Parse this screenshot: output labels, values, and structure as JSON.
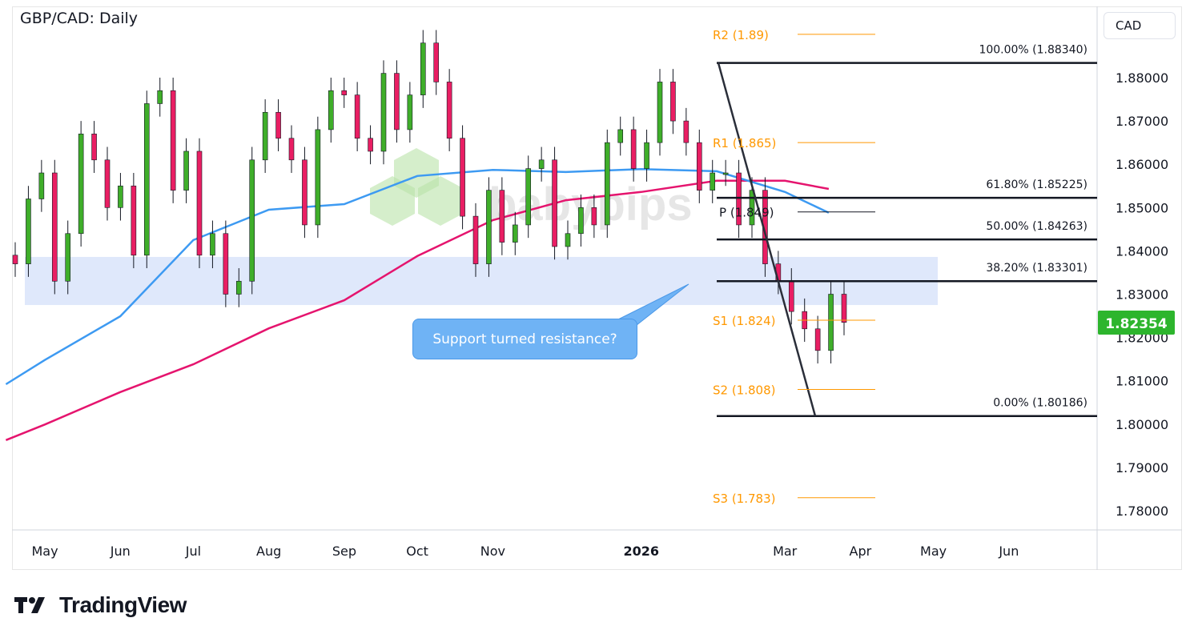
{
  "header": {
    "title": "GBP/CAD: Daily",
    "currency": "CAD",
    "brand": "TradingView",
    "watermark": "babypips"
  },
  "colors": {
    "up": "#3fae2a",
    "down": "#e91e63",
    "ma_fast": "#3d9af2",
    "ma_slow": "#e5146e",
    "pivot": "#ff9800",
    "fib": "#131722",
    "zone": "#dce6fb",
    "last_price": "#2db52d"
  },
  "annotation": {
    "text": "Support turned resistance?"
  },
  "chart_data": {
    "type": "candlestick",
    "title": "GBP/CAD: Daily",
    "ylim": [
      1.775,
      1.894
    ],
    "y_ticks": [
      "1.88000",
      "1.87000",
      "1.86000",
      "1.85000",
      "1.84000",
      "1.83000",
      "1.82000",
      "1.81000",
      "1.80000",
      "1.79000",
      "1.78000"
    ],
    "y_tick_values": [
      1.88,
      1.87,
      1.86,
      1.85,
      1.84,
      1.83,
      1.82,
      1.81,
      1.8,
      1.79,
      1.78
    ],
    "x_ticks": [
      "May",
      "Jun",
      "Jul",
      "Aug",
      "Sep",
      "Oct",
      "Nov",
      "2026",
      "Mar",
      "Apr",
      "May",
      "Jun"
    ],
    "x_tick_dates": [
      "2025-05-01",
      "2025-06-01",
      "2025-07-01",
      "2025-08-01",
      "2025-09-01",
      "2025-10-01",
      "2025-11-01",
      "2026-01-01",
      "2026-03-01",
      "2026-04-01",
      "2026-05-01",
      "2026-06-01"
    ],
    "last_price": "1.82354",
    "closes": [
      1.837,
      1.852,
      1.858,
      1.833,
      1.844,
      1.867,
      1.861,
      1.85,
      1.855,
      1.839,
      1.874,
      1.877,
      1.854,
      1.863,
      1.839,
      1.844,
      1.83,
      1.833,
      1.861,
      1.872,
      1.866,
      1.861,
      1.846,
      1.868,
      1.877,
      1.876,
      1.866,
      1.863,
      1.881,
      1.868,
      1.876,
      1.888,
      1.879,
      1.866,
      1.848,
      1.837,
      1.854,
      1.842,
      1.846,
      1.859,
      1.861,
      1.841,
      1.844,
      1.85,
      1.846,
      1.865,
      1.868,
      1.859,
      1.865,
      1.879,
      1.87,
      1.865,
      1.854,
      1.858,
      1.858,
      1.846,
      1.854,
      1.837,
      1.833,
      1.826,
      1.822,
      1.817,
      1.83,
      1.8235
    ],
    "ma_fast": [
      [
        "2025-04-15",
        1.8092
      ],
      [
        "2025-05-01",
        1.8148
      ],
      [
        "2025-06-01",
        1.8249
      ],
      [
        "2025-07-01",
        1.8425
      ],
      [
        "2025-08-01",
        1.8495
      ],
      [
        "2025-09-01",
        1.8508
      ],
      [
        "2025-10-01",
        1.8573
      ],
      [
        "2025-11-01",
        1.8587
      ],
      [
        "2025-12-01",
        1.8582
      ],
      [
        "2026-01-01",
        1.8589
      ],
      [
        "2026-02-01",
        1.8584
      ],
      [
        "2026-03-01",
        1.8536
      ],
      [
        "2026-03-19",
        1.8488
      ]
    ],
    "ma_slow": [
      [
        "2025-04-15",
        1.7963
      ],
      [
        "2025-05-01",
        1.7999
      ],
      [
        "2025-06-01",
        1.8074
      ],
      [
        "2025-07-01",
        1.8138
      ],
      [
        "2025-08-01",
        1.8221
      ],
      [
        "2025-09-01",
        1.8286
      ],
      [
        "2025-10-01",
        1.8388
      ],
      [
        "2025-11-01",
        1.8471
      ],
      [
        "2025-12-01",
        1.8517
      ],
      [
        "2026-01-01",
        1.8536
      ],
      [
        "2026-02-01",
        1.8562
      ],
      [
        "2026-03-01",
        1.8562
      ],
      [
        "2026-03-19",
        1.8543
      ]
    ],
    "pivots": [
      {
        "label": "R2 (1.89)",
        "value": 1.89
      },
      {
        "label": "R1 (1.865)",
        "value": 1.865
      },
      {
        "label": "P (1.849)",
        "value": 1.849
      },
      {
        "label": "S1 (1.824)",
        "value": 1.824
      },
      {
        "label": "S2 (1.808)",
        "value": 1.808
      },
      {
        "label": "S3 (1.783)",
        "value": 1.783
      }
    ],
    "fib": [
      {
        "label": "100.00% (1.88340)",
        "value": 1.8834
      },
      {
        "label": "61.80% (1.85225)",
        "value": 1.85225
      },
      {
        "label": "50.00% (1.84263)",
        "value": 1.84263
      },
      {
        "label": "38.20% (1.83301)",
        "value": 1.83301
      },
      {
        "label": "0.00% (1.80186)",
        "value": 1.80186
      }
    ],
    "zone": [
      1.8275,
      1.8386
    ]
  }
}
